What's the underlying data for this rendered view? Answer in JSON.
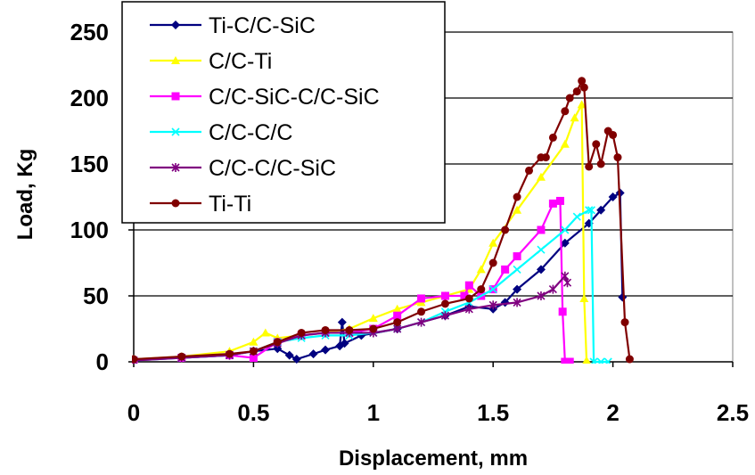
{
  "chart_data": {
    "type": "line",
    "xlabel": "Displacement, mm",
    "ylabel": "Load, Kg",
    "xlim": [
      0,
      2.5
    ],
    "ylim": [
      0,
      250
    ],
    "xticks": [
      "0",
      "0.5",
      "1",
      "1.5",
      "2",
      "2.5"
    ],
    "yticks": [
      "0",
      "50",
      "100",
      "150",
      "200",
      "250"
    ],
    "grid": "horizontal",
    "legend_position": "top-left",
    "series": [
      {
        "name": "Ti-C/C-SiC",
        "color": "#000080",
        "marker": "diamond",
        "x": [
          0,
          0.2,
          0.4,
          0.5,
          0.6,
          0.65,
          0.68,
          0.75,
          0.8,
          0.86,
          0.87,
          0.88,
          0.95,
          1.1,
          1.3,
          1.4,
          1.5,
          1.55,
          1.6,
          1.7,
          1.8,
          1.9,
          1.95,
          2.0,
          2.03,
          2.04
        ],
        "y": [
          2,
          3,
          5,
          8,
          10,
          5,
          2,
          6,
          9,
          12,
          30,
          14,
          20,
          25,
          35,
          42,
          40,
          45,
          55,
          70,
          90,
          105,
          115,
          125,
          128,
          49
        ]
      },
      {
        "name": "C/C-Ti",
        "color": "#ffff00",
        "marker": "triangle",
        "x": [
          0,
          0.2,
          0.4,
          0.5,
          0.55,
          0.6,
          0.7,
          0.8,
          0.9,
          1.0,
          1.1,
          1.2,
          1.3,
          1.4,
          1.45,
          1.5,
          1.6,
          1.7,
          1.8,
          1.84,
          1.87,
          1.88,
          1.89
        ],
        "y": [
          2,
          4,
          8,
          15,
          22,
          18,
          20,
          22,
          25,
          33,
          40,
          45,
          50,
          55,
          70,
          90,
          115,
          140,
          165,
          185,
          195,
          48,
          1
        ]
      },
      {
        "name": "C/C-SiC-C/C-SiC",
        "color": "#ff00ff",
        "marker": "square",
        "x": [
          0,
          0.2,
          0.4,
          0.5,
          0.6,
          0.7,
          0.8,
          0.9,
          1.0,
          1.1,
          1.2,
          1.3,
          1.38,
          1.4,
          1.45,
          1.5,
          1.55,
          1.6,
          1.7,
          1.75,
          1.78,
          1.79,
          1.8,
          1.82
        ],
        "y": [
          1,
          3,
          5,
          3,
          15,
          20,
          22,
          22,
          25,
          35,
          48,
          50,
          50,
          58,
          50,
          55,
          70,
          80,
          100,
          120,
          122,
          38,
          0,
          0
        ]
      },
      {
        "name": "C/C-C/C",
        "color": "#00ffff",
        "marker": "x",
        "x": [
          0,
          0.2,
          0.4,
          0.5,
          0.6,
          0.7,
          0.8,
          0.9,
          1.0,
          1.1,
          1.2,
          1.3,
          1.4,
          1.5,
          1.6,
          1.7,
          1.8,
          1.85,
          1.9,
          1.91,
          1.92,
          1.95,
          1.98
        ],
        "y": [
          1,
          3,
          5,
          8,
          15,
          18,
          20,
          20,
          22,
          25,
          30,
          38,
          45,
          55,
          70,
          85,
          100,
          110,
          115,
          115,
          0,
          0,
          0
        ]
      },
      {
        "name": "C/C-C/C-SiC",
        "color": "#800080",
        "marker": "star",
        "x": [
          0,
          0.2,
          0.4,
          0.5,
          0.6,
          0.7,
          0.8,
          0.9,
          1.0,
          1.1,
          1.2,
          1.3,
          1.4,
          1.5,
          1.6,
          1.7,
          1.75,
          1.8,
          1.81
        ],
        "y": [
          1,
          3,
          5,
          8,
          14,
          20,
          22,
          22,
          22,
          25,
          30,
          35,
          40,
          43,
          45,
          50,
          55,
          65,
          60
        ]
      },
      {
        "name": "Ti-Ti",
        "color": "#800000",
        "marker": "circle",
        "x": [
          0,
          0.2,
          0.4,
          0.5,
          0.6,
          0.7,
          0.8,
          0.9,
          1.0,
          1.1,
          1.2,
          1.3,
          1.4,
          1.45,
          1.5,
          1.55,
          1.6,
          1.65,
          1.7,
          1.72,
          1.75,
          1.8,
          1.82,
          1.85,
          1.87,
          1.88,
          1.9,
          1.93,
          1.95,
          1.98,
          2.0,
          2.02,
          2.05,
          2.07
        ],
        "y": [
          2,
          4,
          6,
          8,
          15,
          22,
          24,
          24,
          25,
          30,
          38,
          44,
          48,
          55,
          75,
          100,
          125,
          145,
          155,
          155,
          170,
          190,
          200,
          205,
          213,
          208,
          148,
          165,
          150,
          175,
          172,
          155,
          30,
          2
        ]
      }
    ]
  }
}
